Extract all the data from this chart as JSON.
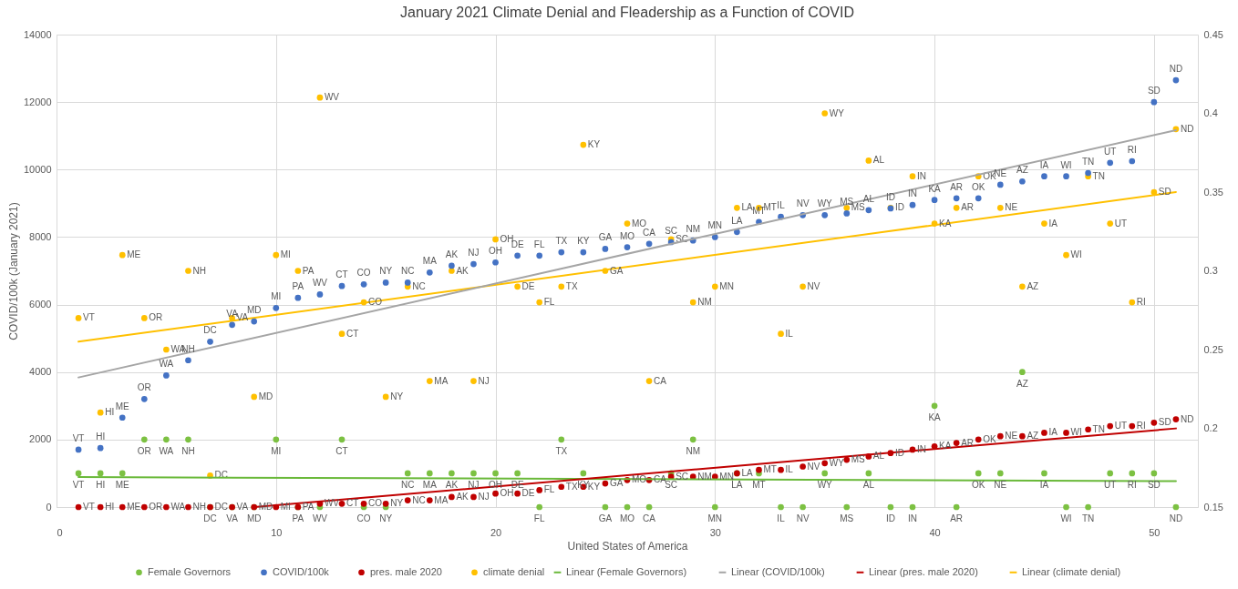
{
  "chart_data": {
    "type": "scatter",
    "title": "January 2021 Climate Denial and Fleadership as a Function of COVID",
    "xlabel": "United States of America",
    "ylabel": "COVID/100k (January 2021)",
    "x": [
      1,
      2,
      3,
      4,
      5,
      6,
      7,
      8,
      9,
      10,
      11,
      12,
      13,
      14,
      15,
      16,
      17,
      18,
      19,
      20,
      21,
      22,
      23,
      24,
      25,
      26,
      27,
      28,
      29,
      30,
      31,
      32,
      33,
      34,
      35,
      36,
      37,
      38,
      39,
      40,
      41,
      42,
      43,
      44,
      45,
      46,
      47,
      48,
      49,
      50,
      51
    ],
    "xlim": [
      0,
      52
    ],
    "xticks": [
      0,
      10,
      20,
      30,
      40,
      50
    ],
    "ylim": [
      0,
      14000
    ],
    "yticks": [
      0,
      2000,
      4000,
      6000,
      8000,
      10000,
      12000,
      14000
    ],
    "y2lim": [
      0.15,
      0.45
    ],
    "y2ticks": [
      0.15,
      0.2,
      0.25,
      0.3,
      0.35,
      0.4,
      0.45
    ],
    "grid": true,
    "legend": "bottom",
    "line_style": "solid",
    "series": [
      {
        "name": "Female Governors",
        "marker": "circle",
        "color": "#7cc142",
        "values": [
          1000,
          1000,
          1000,
          2000,
          2000,
          2000,
          0,
          0,
          0,
          2000,
          0,
          0,
          2000,
          0,
          0,
          1000,
          1000,
          1000,
          1000,
          1000,
          1000,
          0,
          2000,
          1000,
          0,
          0,
          0,
          1000,
          2000,
          0,
          1000,
          1000,
          0,
          0,
          1000,
          0,
          1000,
          0,
          0,
          3000,
          0,
          1000,
          1000,
          4000,
          1000,
          0,
          0,
          1000,
          1000,
          1000,
          0
        ],
        "value_labels": [
          "VT",
          "HI",
          "ME",
          "OR",
          "WA",
          "NH",
          "DC",
          "VA",
          "MD",
          "MI",
          "PA",
          "WV",
          "CT",
          "CO",
          "NY",
          "NC",
          "MA",
          "AK",
          "NJ",
          "OH",
          "DE",
          "FL",
          "TX",
          "KY",
          "GA",
          "MO",
          "CA",
          "SC",
          "NM",
          "MN",
          "LA",
          "MT",
          "IL",
          "NV",
          "WY",
          "MS",
          "AL",
          "ID",
          "IN",
          "KA",
          "AR",
          "OK",
          "NE",
          "AZ",
          "IA",
          "WI",
          "TN",
          "UT",
          "RI",
          "SD",
          "ND"
        ]
      },
      {
        "name": "COVID/100k",
        "marker": "circle",
        "color": "#4472c4",
        "values": [
          1700,
          1750,
          2650,
          3200,
          3900,
          4350,
          4900,
          5400,
          5500,
          5900,
          6200,
          6300,
          6550,
          6600,
          6650,
          6650,
          6950,
          7150,
          7200,
          7250,
          7450,
          7450,
          7550,
          7550,
          7650,
          7700,
          7800,
          7850,
          7900,
          8000,
          8150,
          8450,
          8600,
          8650,
          8650,
          8700,
          8800,
          8850,
          8950,
          9100,
          9150,
          9150,
          9550,
          9650,
          9800,
          9800,
          9900,
          10200,
          10250,
          12000,
          12650
        ],
        "value_labels": [
          "VT",
          "HI",
          "ME",
          "OR",
          "WA",
          "NH",
          "DC",
          "VA",
          "MD",
          "MI",
          "PA",
          "WV",
          "CT",
          "CO",
          "NY",
          "NC",
          "MA",
          "AK",
          "NJ",
          "OH",
          "DE",
          "FL",
          "TX",
          "KY",
          "GA",
          "MO",
          "CA",
          "SC",
          "NM",
          "MN",
          "LA",
          "MT",
          "IL",
          "NV",
          "WY",
          "MS",
          "AL",
          "ID",
          "IN",
          "KA",
          "AR",
          "OK",
          "NE",
          "AZ",
          "IA",
          "WI",
          "TN",
          "UT",
          "RI",
          "SD",
          "ND"
        ]
      },
      {
        "name": "pres. male 2020",
        "marker": "circle",
        "color": "#c00000",
        "values": [
          0,
          0,
          0,
          0,
          0,
          0,
          0,
          0,
          0,
          0,
          0,
          100,
          100,
          100,
          100,
          200,
          200,
          300,
          300,
          400,
          400,
          500,
          600,
          600,
          700,
          800,
          800,
          900,
          900,
          900,
          1000,
          1100,
          1100,
          1200,
          1300,
          1400,
          1500,
          1600,
          1700,
          1800,
          1900,
          2000,
          2100,
          2100,
          2200,
          2200,
          2300,
          2400,
          2400,
          2500,
          2600
        ],
        "value_labels": [
          "VT",
          "HI",
          "ME",
          "OR",
          "WA",
          "NH",
          "DC",
          "VA",
          "MD",
          "MI",
          "PA",
          "WV",
          "CT",
          "CO",
          "NY",
          "NC",
          "MA",
          "AK",
          "NJ",
          "OH",
          "DE",
          "FL",
          "TX",
          "KY",
          "GA",
          "MO",
          "CA",
          "SC",
          "NM",
          "MN",
          "LA",
          "MT",
          "IL",
          "NV",
          "WY",
          "MS",
          "AL",
          "ID",
          "IN",
          "KA",
          "AR",
          "OK",
          "NE",
          "AZ",
          "IA",
          "WI",
          "TN",
          "UT",
          "RI",
          "SD",
          "ND"
        ]
      },
      {
        "name": "climate denial",
        "marker": "circle",
        "axis": "y2",
        "color": "#ffc000",
        "values": [
          0.27,
          0.21,
          0.31,
          0.27,
          0.25,
          0.3,
          0.17,
          0.27,
          0.22,
          0.31,
          0.3,
          0.41,
          0.26,
          0.28,
          0.22,
          0.29,
          0.23,
          0.3,
          0.23,
          0.32,
          0.29,
          0.28,
          0.29,
          0.38,
          0.3,
          0.33,
          0.23,
          0.32,
          0.28,
          0.29,
          0.34,
          0.34,
          0.26,
          0.29,
          0.4,
          0.34,
          0.37,
          0.34,
          0.36,
          0.33,
          0.34,
          0.36,
          0.34,
          0.29,
          0.33,
          0.31,
          0.36,
          0.33,
          0.28,
          0.35,
          0.39
        ],
        "value_labels": [
          "VT",
          "HI",
          "ME",
          "OR",
          "WA",
          "NH",
          "DC",
          "VA",
          "MD",
          "MI",
          "PA",
          "WV",
          "CT",
          "CO",
          "NY",
          "NC",
          "MA",
          "AK",
          "NJ",
          "OH",
          "DE",
          "FL",
          "TX",
          "KY",
          "GA",
          "MO",
          "CA",
          "SC",
          "NM",
          "MN",
          "LA",
          "MT",
          "IL",
          "NV",
          "WY",
          "MS",
          "AL",
          "ID",
          "IN",
          "KA",
          "AR",
          "OK",
          "NE",
          "AZ",
          "IA",
          "WI",
          "TN",
          "UT",
          "RI",
          "SD",
          "ND"
        ]
      },
      {
        "name": "Linear (Female Governors)",
        "type": "line",
        "color": "#6ab93a",
        "x": [
          1,
          51
        ],
        "values": [
          890,
          770
        ]
      },
      {
        "name": "Linear (COVID/100k)",
        "type": "line",
        "color": "#a5a5a5",
        "x": [
          1,
          51
        ],
        "values": [
          3840,
          11170
        ]
      },
      {
        "name": "Linear (pres. male 2020)",
        "type": "line",
        "color": "#c00000",
        "x": [
          9,
          51
        ],
        "values": [
          0,
          2330
        ]
      },
      {
        "name": "Linear (climate denial)",
        "type": "line",
        "axis": "y2",
        "color": "#ffc000",
        "x": [
          1,
          51
        ],
        "values": [
          0.255,
          0.35
        ]
      }
    ]
  }
}
